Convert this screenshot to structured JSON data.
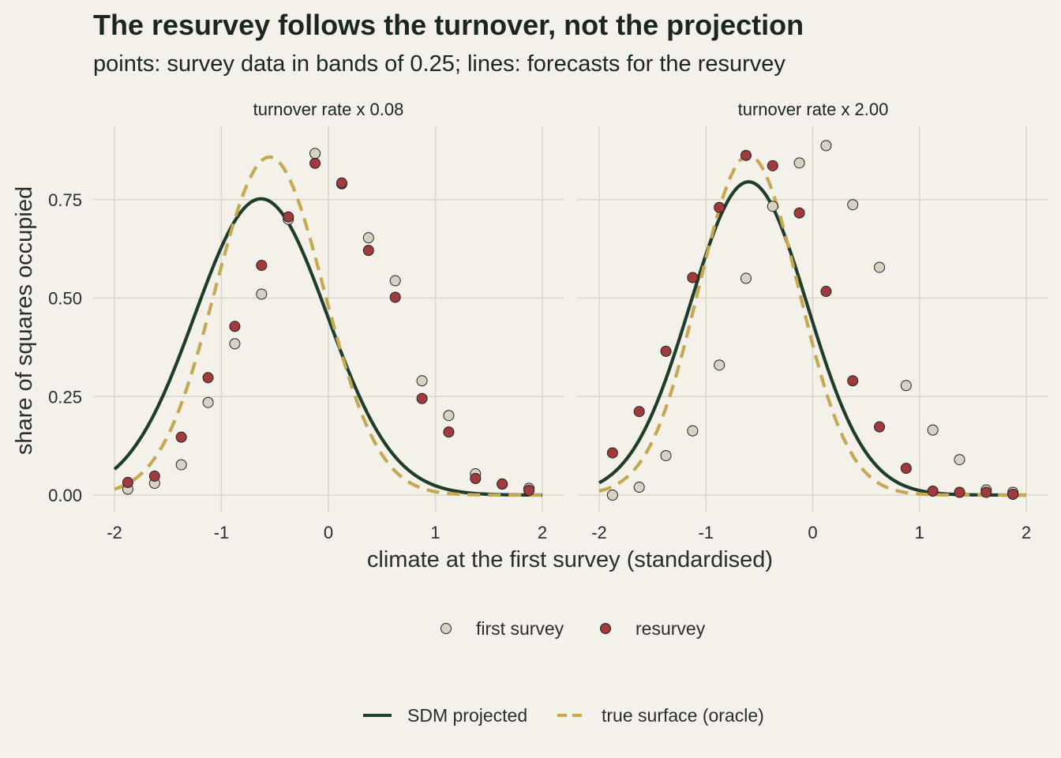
{
  "title": "The resurvey follows the turnover, not the projection",
  "subtitle": "points: survey data in bands of 0.25; lines: forecasts for the resurvey",
  "colors": {
    "background": "#f3f1ea",
    "grid": "#d9d8c8",
    "sdm_line": "#1f3d2b",
    "true_line": "#c5a852",
    "first_fill": "#d6d3c2",
    "resurvey_fill": "#a03a3d",
    "point_stroke": "#222222"
  },
  "legend_points": {
    "first_label": "first survey",
    "resurvey_label": "resurvey"
  },
  "legend_lines": {
    "sdm_label": "SDM projected",
    "true_label": "true surface (oracle)"
  },
  "chart_data": {
    "type": "scatter",
    "xlabel": "climate at the first survey (standardised)",
    "ylabel": "share of squares occupied",
    "xlim": [
      -2,
      2
    ],
    "ylim": [
      0,
      0.85
    ],
    "x_ticks": [
      "-2",
      "-1",
      "0",
      "1",
      "2"
    ],
    "y_ticks": [
      "0.00",
      "0.25",
      "0.50",
      "0.75"
    ],
    "grid": true,
    "legend_position": "bottom",
    "panels": [
      {
        "label": "turnover rate x 0.08",
        "first_survey": {
          "x": [
            -1.875,
            -1.625,
            -1.375,
            -1.125,
            -0.875,
            -0.625,
            -0.375,
            -0.125,
            0.125,
            0.375,
            0.625,
            0.875,
            1.125,
            1.375,
            1.625,
            1.875
          ],
          "y": [
            0.015,
            0.03,
            0.077,
            0.235,
            0.384,
            0.51,
            0.7,
            0.867,
            0.79,
            0.653,
            0.544,
            0.29,
            0.202,
            0.054,
            0.028,
            0.017
          ]
        },
        "resurvey": {
          "x": [
            -1.875,
            -1.625,
            -1.375,
            -1.125,
            -0.875,
            -0.625,
            -0.375,
            -0.125,
            0.125,
            0.375,
            0.625,
            0.875,
            1.125,
            1.375,
            1.625,
            1.875
          ],
          "y": [
            0.032,
            0.048,
            0.147,
            0.298,
            0.428,
            0.583,
            0.706,
            0.842,
            0.792,
            0.621,
            0.502,
            0.245,
            0.16,
            0.042,
            0.028,
            0.012
          ]
        },
        "sdm_projected": {
          "peak_x": -0.63,
          "peak_y": 0.752,
          "sigma": 0.62
        },
        "true_surface": {
          "peak_x": -0.55,
          "peak_y": 0.858,
          "sigma": 0.51
        }
      },
      {
        "label": "turnover rate x 2.00",
        "first_survey": {
          "x": [
            -1.875,
            -1.625,
            -1.375,
            -1.125,
            -0.875,
            -0.625,
            -0.375,
            -0.125,
            0.125,
            0.375,
            0.625,
            0.875,
            1.125,
            1.375,
            1.625,
            1.875
          ],
          "y": [
            0.0,
            0.02,
            0.1,
            0.163,
            0.33,
            0.55,
            0.733,
            0.843,
            0.887,
            0.737,
            0.578,
            0.278,
            0.165,
            0.09,
            0.013,
            0.007
          ]
        },
        "resurvey": {
          "x": [
            -1.875,
            -1.625,
            -1.375,
            -1.125,
            -0.875,
            -0.625,
            -0.375,
            -0.125,
            0.125,
            0.375,
            0.625,
            0.875,
            1.125,
            1.375,
            1.625,
            1.875
          ],
          "y": [
            0.107,
            0.212,
            0.365,
            0.552,
            0.73,
            0.862,
            0.836,
            0.716,
            0.517,
            0.29,
            0.173,
            0.068,
            0.01,
            0.007,
            0.007,
            0.002
          ]
        },
        "sdm_projected": {
          "peak_x": -0.6,
          "peak_y": 0.795,
          "sigma": 0.55
        },
        "true_surface": {
          "peak_x": -0.6,
          "peak_y": 0.862,
          "sigma": 0.47
        }
      }
    ]
  }
}
